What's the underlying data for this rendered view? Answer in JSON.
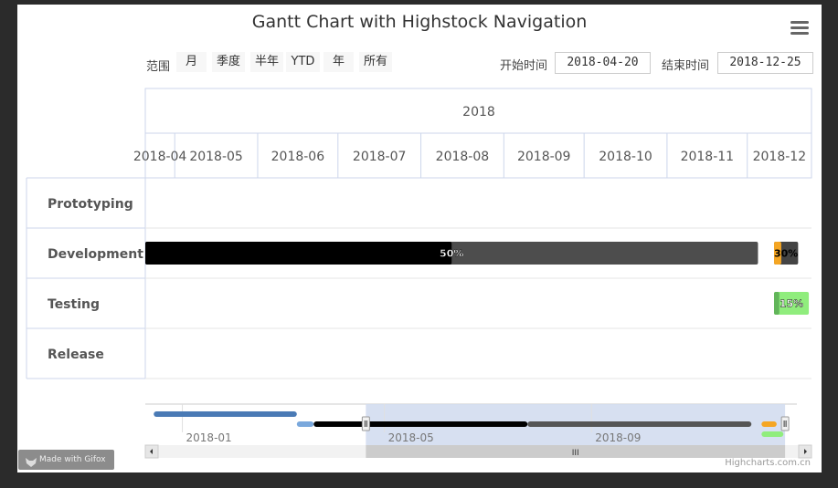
{
  "chart_data": {
    "type": "gantt",
    "title": "Gantt Chart with Highstock Navigation",
    "categories": [
      "Prototyping",
      "Development",
      "Testing",
      "Release"
    ],
    "x_range": [
      "2018-04-20",
      "2018-12-25"
    ],
    "year_label": "2018",
    "month_labels": [
      "2018-04",
      "2018-05",
      "2018-06",
      "2018-07",
      "2018-08",
      "2018-09",
      "2018-10",
      "2018-11",
      "2018-12"
    ],
    "tasks": [
      {
        "category": "Development",
        "start": "2018-04-20",
        "end": "2018-12-05",
        "completed": 0.5,
        "label": "50%",
        "color": "#4d4d4d",
        "completed_color": "#000000"
      },
      {
        "category": "Development",
        "start": "2018-12-11",
        "end": "2018-12-20",
        "completed": 0.3,
        "label": "30%",
        "color": "#444444",
        "completed_color": "#f5a623"
      },
      {
        "category": "Testing",
        "start": "2018-12-11",
        "end": "2018-12-24",
        "completed": 0.15,
        "label": "15%",
        "color": "#90ed7d",
        "completed_color": "#62b55a"
      }
    ]
  },
  "range_selector": {
    "zoom_label": "范围",
    "buttons": [
      "月",
      "季度",
      "半年",
      "YTD",
      "年",
      "所有"
    ],
    "from_label": "开始时间",
    "from_value": "2018-04-20",
    "to_label": "结束时间",
    "to_value": "2018-12-25"
  },
  "navigator": {
    "axis_labels": [
      "2018-01",
      "2018-05",
      "2018-09"
    ],
    "range": [
      "2017-12-10",
      "2019-01-01"
    ],
    "selected": [
      "2018-04-20",
      "2018-12-25"
    ],
    "scroll_handle": "III",
    "bars": [
      {
        "start": "2017-12-15",
        "end": "2018-03-10",
        "color": "#4a7ab5"
      },
      {
        "start": "2018-03-10",
        "end": "2018-03-20",
        "color": "#7aa8dc"
      },
      {
        "start": "2018-03-20",
        "end": "2018-07-25",
        "color": "#000000"
      },
      {
        "start": "2018-07-25",
        "end": "2018-12-05",
        "color": "#555555"
      },
      {
        "start": "2018-12-11",
        "end": "2018-12-20",
        "color": "#f5a623"
      },
      {
        "start": "2018-12-11",
        "end": "2018-12-24",
        "color": "#90ed7d"
      }
    ]
  },
  "credits": "Highcharts.com.cn",
  "watermark": "Made with Gifox",
  "colors": {
    "grid": "#ccd6eb",
    "navigator_mask": "#d3ddef",
    "handle": "#f2f2f2"
  }
}
